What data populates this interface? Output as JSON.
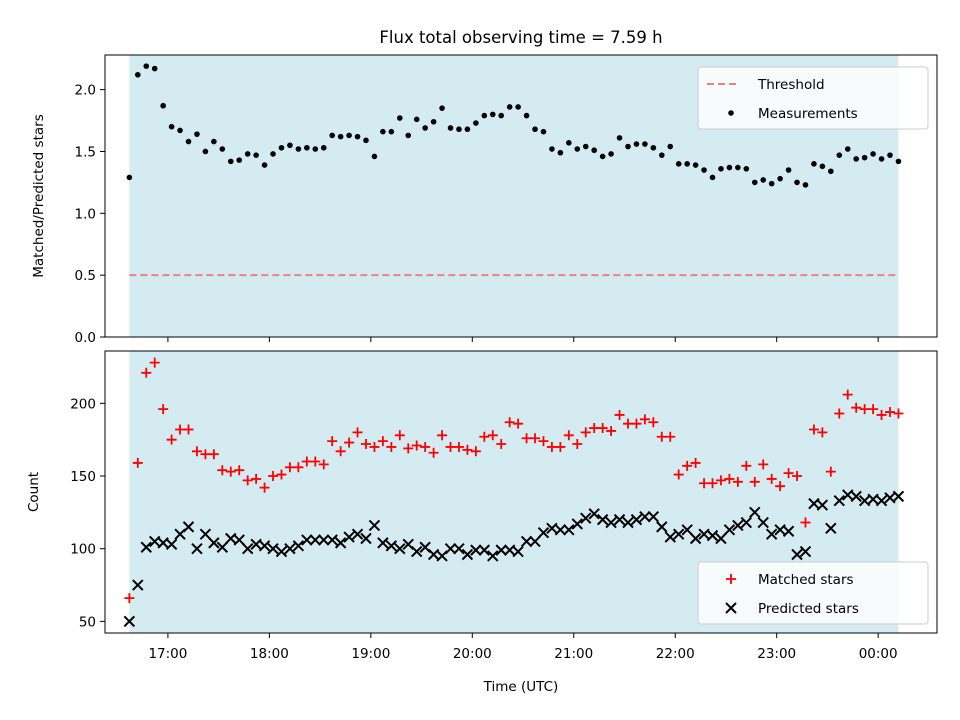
{
  "chart_data": {
    "title": "Flux total observing time = 7.59 h",
    "x_axis": {
      "label": "Time (UTC)",
      "range_hours": [
        16.38,
        24.58
      ],
      "ticks": [
        {
          "value": 17,
          "label": "17:00"
        },
        {
          "value": 18,
          "label": "18:00"
        },
        {
          "value": 19,
          "label": "19:00"
        },
        {
          "value": 20,
          "label": "20:00"
        },
        {
          "value": 21,
          "label": "21:00"
        },
        {
          "value": 22,
          "label": "22:00"
        },
        {
          "value": 23,
          "label": "23:00"
        },
        {
          "value": 24,
          "label": "00:00"
        }
      ]
    },
    "observing_window": {
      "start": 16.62,
      "end": 24.2,
      "color": "#d4ebf1"
    },
    "panels": [
      {
        "type": "scatter",
        "ylabel": "Matched/Predicted stars",
        "ylim": [
          0,
          2.28
        ],
        "yticks": [
          {
            "value": 0,
            "label": "0.0"
          },
          {
            "value": 0.5,
            "label": "0.5"
          },
          {
            "value": 1.0,
            "label": "1.0"
          },
          {
            "value": 1.5,
            "label": "1.5"
          },
          {
            "value": 2.0,
            "label": "2.0"
          }
        ],
        "threshold": {
          "name": "Threshold",
          "value": 0.5,
          "color": "#f08080"
        },
        "series": [
          {
            "name": "Measurements",
            "marker": "dot",
            "color": "#000000",
            "values": [
              1.29,
              2.12,
              2.19,
              2.17,
              1.87,
              1.7,
              1.67,
              1.58,
              1.64,
              1.5,
              1.58,
              1.52,
              1.42,
              1.43,
              1.48,
              1.47,
              1.39,
              1.48,
              1.53,
              1.55,
              1.52,
              1.53,
              1.52,
              1.53,
              1.63,
              1.62,
              1.63,
              1.62,
              1.59,
              1.46,
              1.66,
              1.66,
              1.77,
              1.63,
              1.76,
              1.69,
              1.74,
              1.85,
              1.69,
              1.68,
              1.68,
              1.73,
              1.79,
              1.8,
              1.79,
              1.86,
              1.86,
              1.79,
              1.68,
              1.66,
              1.52,
              1.49,
              1.57,
              1.52,
              1.54,
              1.51,
              1.46,
              1.48,
              1.61,
              1.54,
              1.56,
              1.56,
              1.53,
              1.47,
              1.54,
              1.4,
              1.4,
              1.39,
              1.35,
              1.29,
              1.36,
              1.37,
              1.37,
              1.36,
              1.25,
              1.27,
              1.24,
              1.28,
              1.35,
              1.25,
              1.23,
              1.4,
              1.38,
              1.34,
              1.47,
              1.52,
              1.44,
              1.45,
              1.48,
              1.44,
              1.47,
              1.42
            ]
          }
        ],
        "legend": {
          "position": "upper right",
          "items": [
            "Threshold",
            "Measurements"
          ]
        }
      },
      {
        "type": "scatter",
        "ylabel": "Count",
        "ylim": [
          42,
          236
        ],
        "yticks": [
          {
            "value": 50,
            "label": "50"
          },
          {
            "value": 100,
            "label": "100"
          },
          {
            "value": 150,
            "label": "150"
          },
          {
            "value": 200,
            "label": "200"
          }
        ],
        "series": [
          {
            "name": "Matched stars",
            "marker": "plus",
            "color": "#ff0000",
            "values": [
              66,
              159,
              221,
              228,
              196,
              175,
              182,
              182,
              167,
              165,
              165,
              154,
              153,
              154,
              147,
              148,
              142,
              150,
              151,
              156,
              156,
              160,
              160,
              158,
              174,
              167,
              173,
              180,
              172,
              170,
              174,
              170,
              178,
              169,
              171,
              170,
              166,
              178,
              170,
              170,
              168,
              167,
              177,
              178,
              172,
              187,
              186,
              176,
              176,
              174,
              170,
              170,
              178,
              172,
              180,
              183,
              183,
              181,
              192,
              186,
              186,
              189,
              187,
              177,
              177,
              151,
              157,
              159,
              145,
              145,
              147,
              148,
              146,
              157,
              146,
              158,
              148,
              143,
              152,
              150,
              118,
              182,
              180,
              153,
              193,
              206,
              197,
              196,
              196,
              192,
              194,
              193
            ]
          },
          {
            "name": "Predicted stars",
            "marker": "x",
            "color": "#000000",
            "values": [
              50,
              75,
              101,
              105,
              104,
              103,
              110,
              115,
              100,
              110,
              104,
              101,
              107,
              106,
              100,
              103,
              102,
              100,
              98,
              100,
              102,
              106,
              106,
              106,
              106,
              104,
              108,
              110,
              107,
              116,
              104,
              102,
              100,
              103,
              98,
              101,
              96,
              95,
              100,
              100,
              96,
              99,
              99,
              95,
              99,
              99,
              98,
              105,
              105,
              111,
              114,
              113,
              113,
              117,
              121,
              124,
              120,
              118,
              120,
              118,
              120,
              122,
              122,
              115,
              108,
              110,
              113,
              107,
              110,
              109,
              107,
              113,
              116,
              118,
              125,
              118,
              110,
              113,
              112,
              96,
              98,
              131,
              130,
              114,
              133,
              137,
              136,
              133,
              134,
              133,
              135,
              136
            ]
          }
        ],
        "legend": {
          "position": "lower right",
          "items": [
            "Matched stars",
            "Predicted stars"
          ]
        }
      }
    ]
  }
}
